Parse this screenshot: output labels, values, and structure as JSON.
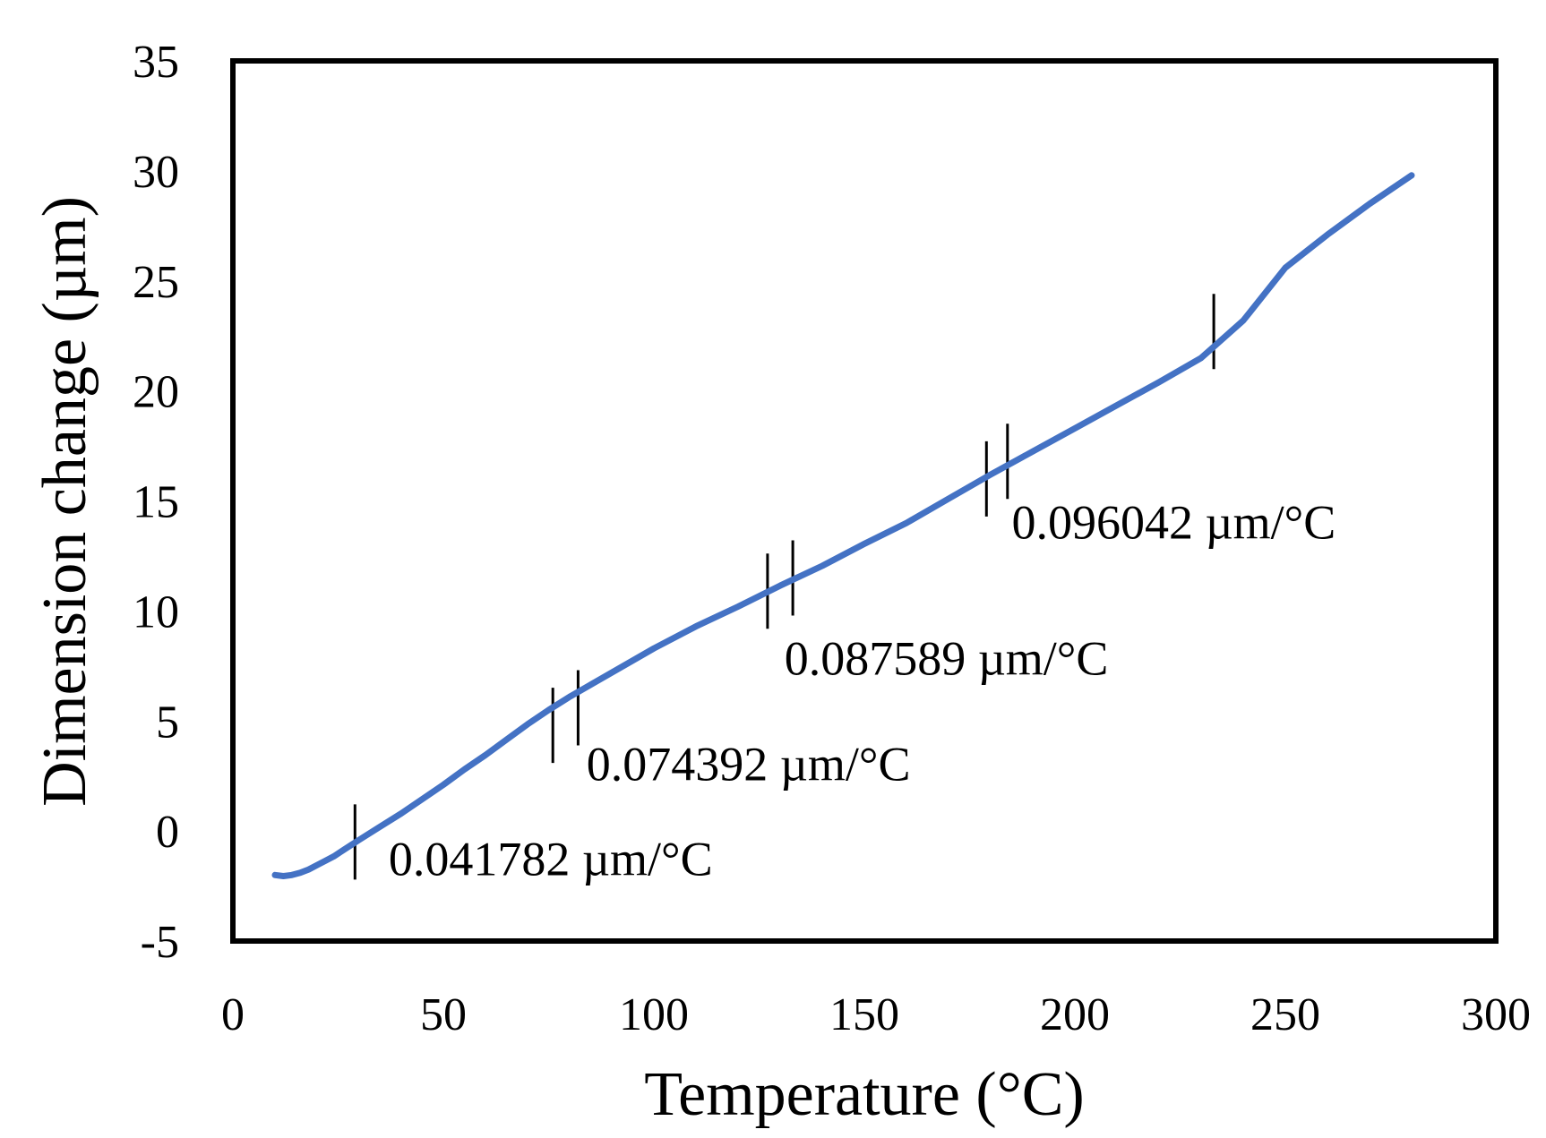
{
  "chart_data": {
    "type": "line",
    "title": "",
    "xlabel": "Temperature (°C)",
    "ylabel": "Dimension change (µm)",
    "xlim": [
      0,
      300
    ],
    "ylim": [
      -5,
      35
    ],
    "xticks": [
      0,
      50,
      100,
      150,
      200,
      250,
      300
    ],
    "yticks": [
      -5,
      0,
      5,
      10,
      15,
      20,
      25,
      30,
      35
    ],
    "x_tick_labels": [
      "0",
      "50",
      "100",
      "150",
      "200",
      "250",
      "300"
    ],
    "y_tick_labels": [
      "-5",
      "0",
      "5",
      "10",
      "15",
      "20",
      "25",
      "30",
      "35"
    ],
    "grid": false,
    "legend": "none",
    "series": [
      {
        "name": "Dimension change",
        "color": "#4472c4",
        "x": [
          10,
          12,
          14,
          16,
          18,
          20,
          22,
          24,
          26,
          28,
          30,
          35,
          40,
          45,
          50,
          55,
          60,
          65,
          70,
          75,
          80,
          85,
          90,
          95,
          100,
          110,
          120,
          130,
          140,
          150,
          160,
          170,
          180,
          190,
          200,
          210,
          220,
          230,
          240,
          250,
          260,
          270,
          280
        ],
        "y": [
          -2.0,
          -2.05,
          -2.0,
          -1.9,
          -1.75,
          -1.55,
          -1.35,
          -1.15,
          -0.9,
          -0.65,
          -0.4,
          0.2,
          0.8,
          1.45,
          2.1,
          2.8,
          3.45,
          4.15,
          4.85,
          5.5,
          6.1,
          6.65,
          7.2,
          7.75,
          8.3,
          9.3,
          10.2,
          11.15,
          12.05,
          13.05,
          14.0,
          15.1,
          16.2,
          17.25,
          18.3,
          19.35,
          20.4,
          21.5,
          23.2,
          25.6,
          27.1,
          28.5,
          29.8
        ]
      }
    ],
    "markers": [
      {
        "name": "marker-1",
        "x": 29,
        "y": -0.5
      },
      {
        "name": "marker-2",
        "x": 76,
        "y": 4.8
      },
      {
        "name": "marker-3",
        "x": 82,
        "y": 5.6
      },
      {
        "name": "marker-4",
        "x": 127,
        "y": 10.9
      },
      {
        "name": "marker-5",
        "x": 133,
        "y": 11.5
      },
      {
        "name": "marker-6",
        "x": 179,
        "y": 16.0
      },
      {
        "name": "marker-7",
        "x": 184,
        "y": 16.8
      },
      {
        "name": "marker-8",
        "x": 233,
        "y": 22.7
      }
    ],
    "annotations": [
      {
        "name": "slope-label-1",
        "text": "0.041782 µm/°C",
        "x": 37,
        "y": -2.0
      },
      {
        "name": "slope-label-2",
        "text": "0.074392 µm/°C",
        "x": 84,
        "y": 2.3
      },
      {
        "name": "slope-label-3",
        "text": "0.087589 µm/°C",
        "x": 131,
        "y": 7.1
      },
      {
        "name": "slope-label-4",
        "text": "0.096042 µm/°C",
        "x": 185,
        "y": 13.3
      }
    ]
  }
}
